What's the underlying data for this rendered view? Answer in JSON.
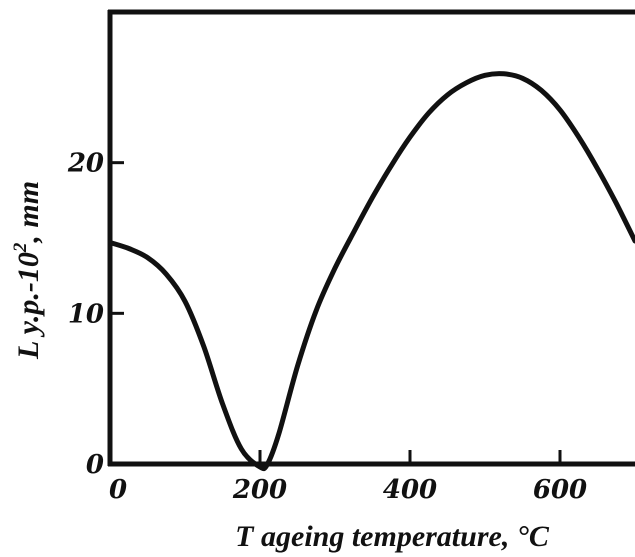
{
  "chart_data": {
    "type": "line",
    "title": "",
    "xlabel": "T ageing temperature, °C",
    "ylabel": {
      "prefix": "L y.p.-10",
      "superscript": "2",
      "suffix": ", mm"
    },
    "xlim": [
      0,
      700
    ],
    "ylim": [
      0,
      30
    ],
    "xticks": [
      0,
      200,
      400,
      600
    ],
    "xtick_labels": [
      "0",
      "200",
      "400",
      "600"
    ],
    "yticks": [
      0,
      10,
      20
    ],
    "ytick_labels": [
      "0",
      "10",
      "20"
    ],
    "grid": false,
    "series": [
      {
        "color": "#111111",
        "x": [
          0,
          25,
          50,
          75,
          100,
          125,
          150,
          175,
          200,
          210,
          225,
          250,
          275,
          300,
          325,
          350,
          375,
          400,
          425,
          450,
          475,
          500,
          525,
          550,
          575,
          600,
          625,
          650,
          675,
          700
        ],
        "y": [
          14.7,
          14.3,
          13.7,
          12.6,
          10.8,
          7.8,
          4.0,
          1.0,
          -0.2,
          0.0,
          2.0,
          6.5,
          10.2,
          13.0,
          15.4,
          17.7,
          19.8,
          21.7,
          23.3,
          24.5,
          25.3,
          25.8,
          25.9,
          25.6,
          24.8,
          23.5,
          21.7,
          19.6,
          17.3,
          14.8
        ]
      }
    ]
  }
}
